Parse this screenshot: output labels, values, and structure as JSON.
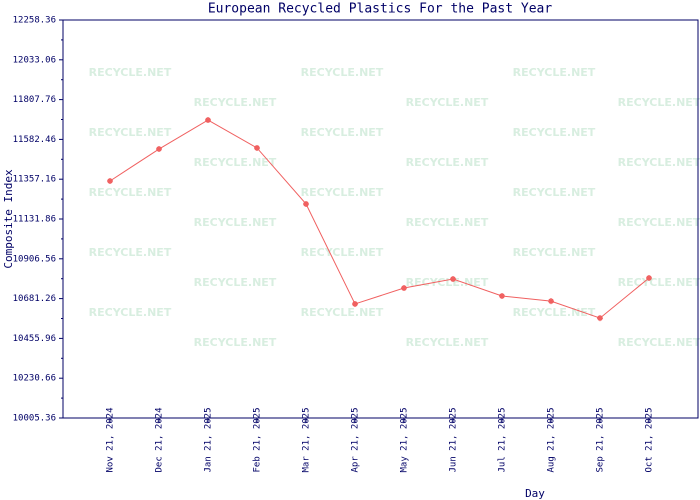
{
  "chart_data": {
    "type": "line",
    "title": "European Recycled Plastics For the Past Year",
    "x_label": "Day",
    "y_label": "Composite Index",
    "watermark": "RECYCLE.NET",
    "categories": [
      "Nov 21, 2024",
      "Dec 21, 2024",
      "Jan 21, 2025",
      "Feb 21, 2025",
      "Mar 21, 2025",
      "Apr 21, 2025",
      "May 21, 2025",
      "Jun 21, 2025",
      "Jul 21, 2025",
      "Aug 21, 2025",
      "Sep 21, 2025",
      "Oct 21, 2025"
    ],
    "series": [
      {
        "name": "Composite Index",
        "color": "#f06060",
        "values": [
          11347,
          11528,
          11692,
          11534,
          11217,
          10651,
          10741,
          10792,
          10696,
          10667,
          10571,
          10798
        ]
      }
    ],
    "ylim": [
      10005.36,
      12258.36
    ],
    "yticks": [
      10005.36,
      10230.66,
      10455.96,
      10681.26,
      10906.56,
      11131.86,
      11357.16,
      11582.46,
      11807.76,
      12033.06,
      12258.36
    ],
    "grid": false
  }
}
